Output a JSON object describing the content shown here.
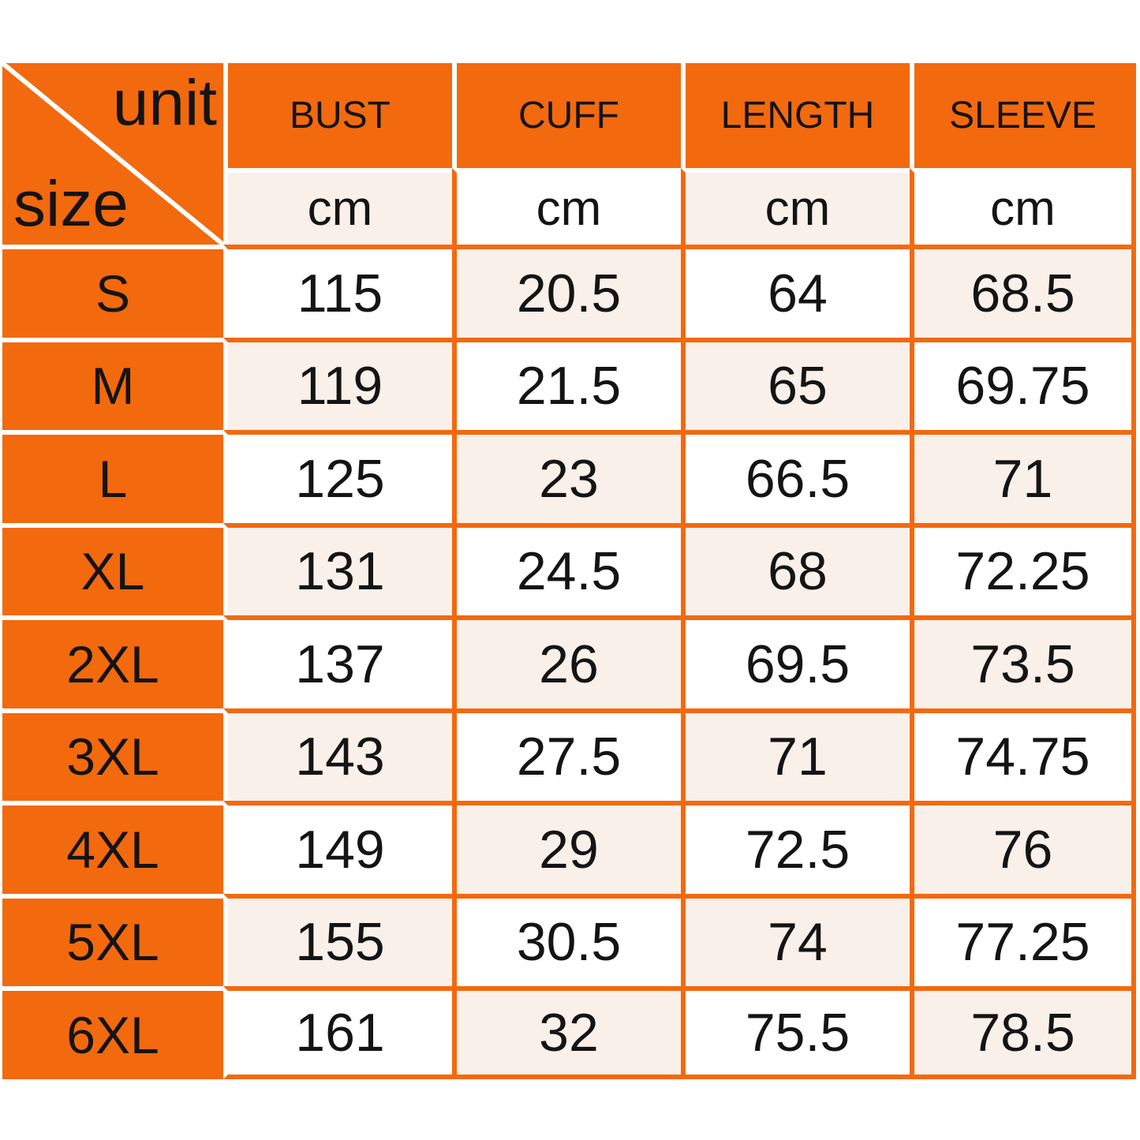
{
  "chart_data": {
    "type": "table",
    "title": "size / unit garment measurement chart",
    "corner": {
      "top_right": "unit",
      "bottom_left": "size"
    },
    "columns": [
      "size",
      "BUST (cm)",
      "CUFF (cm)",
      "LENGTH (cm)",
      "SLEEVE (cm)"
    ],
    "rows": [
      [
        "S",
        115,
        20.5,
        64,
        68.5
      ],
      [
        "M",
        119,
        21.5,
        65,
        69.75
      ],
      [
        "L",
        125,
        23,
        66.5,
        71
      ],
      [
        "XL",
        131,
        24.5,
        68,
        72.25
      ],
      [
        "2XL",
        137,
        26,
        69.5,
        73.5
      ],
      [
        "3XL",
        143,
        27.5,
        71,
        74.75
      ],
      [
        "4XL",
        149,
        29,
        72.5,
        76
      ],
      [
        "5XL",
        155,
        30.5,
        74,
        77.25
      ],
      [
        "6XL",
        161,
        32,
        75.5,
        78.5
      ]
    ],
    "layout": "grid with checkerboard white/cream data cells, orange header row and size column"
  },
  "table": {
    "corner": {
      "unit_label": "unit",
      "size_label": "size"
    },
    "headers": [
      "BUST",
      "CUFF",
      "LENGTH",
      "SLEEVE"
    ],
    "units": [
      "cm",
      "cm",
      "cm",
      "cm"
    ],
    "rows": [
      {
        "size": "S",
        "values": [
          "115",
          "20.5",
          "64",
          "68.5"
        ]
      },
      {
        "size": "M",
        "values": [
          "119",
          "21.5",
          "65",
          "69.75"
        ]
      },
      {
        "size": "L",
        "values": [
          "125",
          "23",
          "66.5",
          "71"
        ]
      },
      {
        "size": "XL",
        "values": [
          "131",
          "24.5",
          "68",
          "72.25"
        ]
      },
      {
        "size": "2XL",
        "values": [
          "137",
          "26",
          "69.5",
          "73.5"
        ]
      },
      {
        "size": "3XL",
        "values": [
          "143",
          "27.5",
          "71",
          "74.75"
        ]
      },
      {
        "size": "4XL",
        "values": [
          "149",
          "29",
          "72.5",
          "76"
        ]
      },
      {
        "size": "5XL",
        "values": [
          "155",
          "30.5",
          "74",
          "77.25"
        ]
      },
      {
        "size": "6XL",
        "values": [
          "161",
          "32",
          "75.5",
          "78.5"
        ]
      }
    ]
  },
  "colors": {
    "orange": "#F3690E",
    "cream": "#FAF0EA",
    "white": "#FFFFFF",
    "text": "#141414"
  }
}
